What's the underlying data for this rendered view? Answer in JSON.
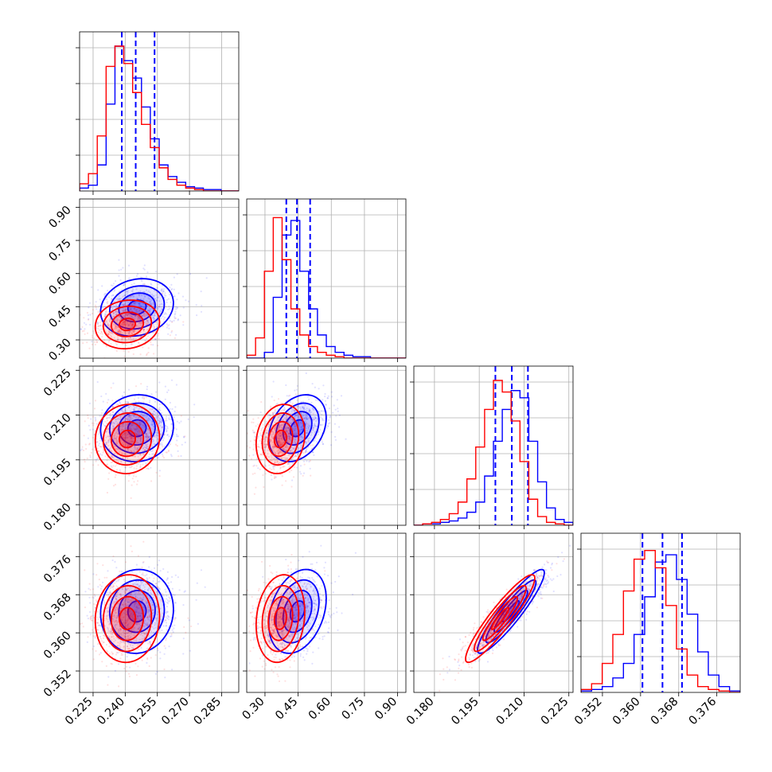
{
  "chart_data": {
    "type": "corner",
    "parameters": [
      {
        "ticks": [
          "0.225",
          "0.240",
          "0.255",
          "0.270",
          "0.285"
        ],
        "tick_values": [
          0.225,
          0.24,
          0.255,
          0.27,
          0.285
        ],
        "range": [
          0.2187,
          0.293
        ]
      },
      {
        "ticks": [
          "0.30",
          "0.45",
          "0.60",
          "0.75",
          "0.90"
        ],
        "tick_values": [
          0.3,
          0.45,
          0.6,
          0.75,
          0.9
        ],
        "range": [
          0.2174,
          0.9375
        ]
      },
      {
        "ticks": [
          "0.180",
          "0.195",
          "0.210",
          "0.225"
        ],
        "tick_values": [
          0.18,
          0.195,
          0.21,
          0.225
        ],
        "range": [
          0.1731,
          0.2264
        ]
      },
      {
        "ticks": [
          "0.352",
          "0.360",
          "0.368",
          "0.376"
        ],
        "tick_values": [
          0.352,
          0.36,
          0.368,
          0.376
        ],
        "range": [
          0.3475,
          0.3809
        ]
      }
    ],
    "series": [
      {
        "color": "#0000ff",
        "quantiles": [
          [
            0.2384,
            0.2449,
            0.2537
          ],
          [
            0.3965,
            0.4447,
            0.5043
          ],
          [
            0.2004,
            0.2059,
            0.2113
          ],
          [
            0.3604,
            0.3646,
            0.3687
          ]
        ],
        "means": [
          0.2455,
          0.447,
          0.2056,
          0.3645
        ],
        "sigmas": [
          0.0085,
          0.065,
          0.0056,
          0.0044
        ],
        "correlations": [
          [
            0,
            1,
            0.15
          ],
          [
            0,
            2,
            0.05
          ],
          [
            0,
            3,
            0.05
          ],
          [
            1,
            2,
            0.3
          ],
          [
            1,
            3,
            0.3
          ],
          [
            2,
            3,
            0.92
          ]
        ],
        "hist": [
          [
            2,
            4,
            18,
            60,
            100,
            90,
            78,
            58,
            36,
            18,
            10,
            6,
            3,
            2,
            1,
            1,
            0,
            0
          ],
          [
            0,
            0,
            4,
            42,
            85,
            95,
            60,
            34,
            16,
            8,
            4,
            2,
            1,
            1,
            0,
            0,
            0,
            0
          ],
          [
            0,
            1,
            1,
            2,
            3,
            5,
            9,
            16,
            34,
            58,
            80,
            93,
            88,
            58,
            30,
            12,
            4,
            2
          ],
          [
            1,
            2,
            4,
            10,
            20,
            40,
            66,
            90,
            95,
            78,
            54,
            28,
            12,
            4,
            1
          ]
        ]
      },
      {
        "color": "#ff0000",
        "means": [
          0.241,
          0.37,
          0.202,
          0.363
        ],
        "sigmas": [
          0.0075,
          0.055,
          0.0058,
          0.0046
        ],
        "correlations": [
          [
            0,
            1,
            0.1
          ],
          [
            0,
            2,
            0.05
          ],
          [
            0,
            3,
            0.05
          ],
          [
            1,
            2,
            0.15
          ],
          [
            1,
            3,
            0.15
          ],
          [
            2,
            3,
            0.92
          ]
        ],
        "hist": [
          [
            5,
            12,
            38,
            86,
            100,
            88,
            68,
            46,
            30,
            16,
            8,
            4,
            2,
            1,
            0,
            0,
            0,
            0
          ],
          [
            2,
            14,
            60,
            97,
            68,
            34,
            16,
            8,
            4,
            2,
            1,
            0,
            0,
            0,
            0,
            0,
            0,
            0
          ],
          [
            0,
            1,
            2,
            4,
            8,
            16,
            32,
            54,
            80,
            100,
            92,
            72,
            44,
            18,
            6,
            2,
            1,
            0
          ],
          [
            2,
            6,
            20,
            40,
            70,
            92,
            98,
            86,
            60,
            30,
            12,
            4,
            2,
            1,
            0
          ]
        ]
      }
    ]
  }
}
